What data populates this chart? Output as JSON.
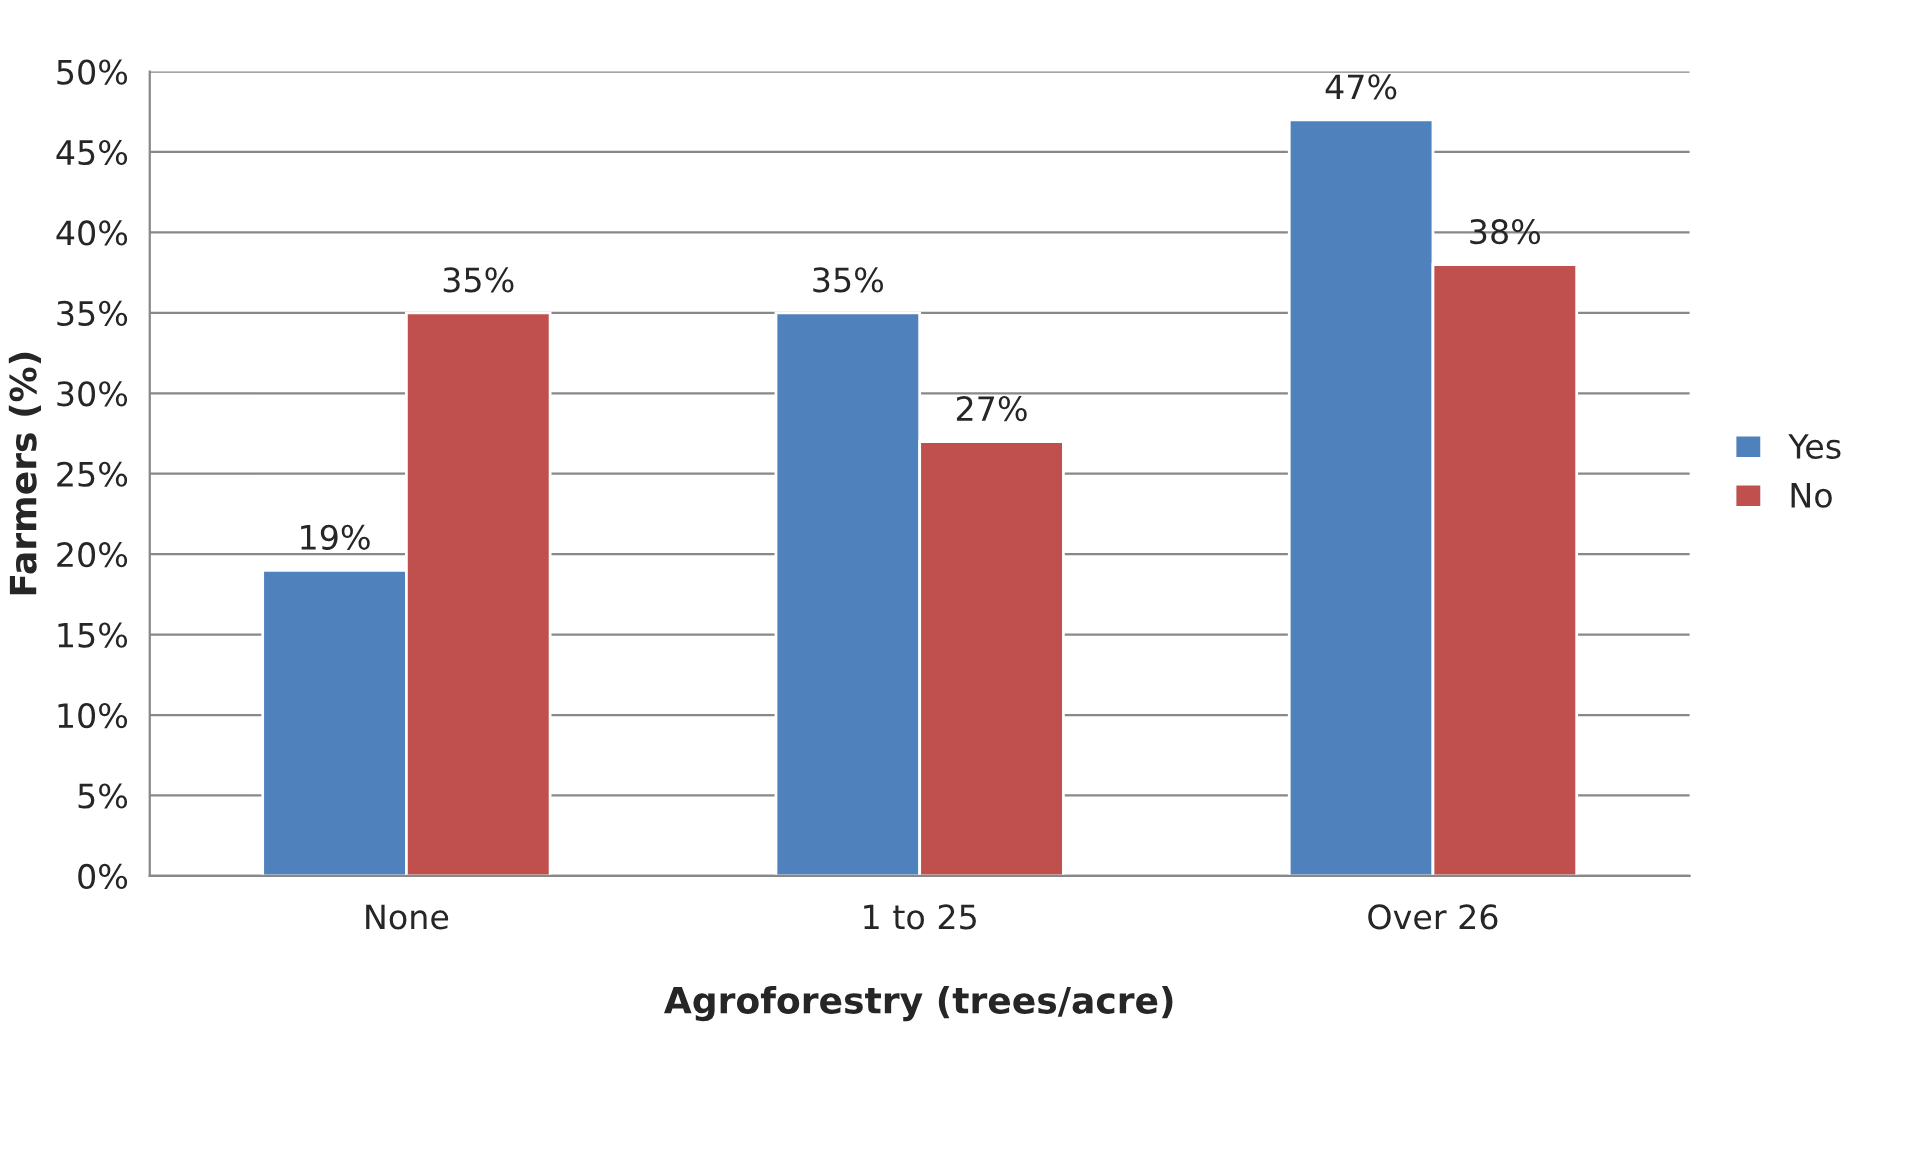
{
  "chart_data": {
    "type": "bar",
    "xlabel": "Agroforestry (trees/acre)",
    "ylabel": "Farmers (%)",
    "categories": [
      "None",
      "1 to 25",
      "Over 26"
    ],
    "series": [
      {
        "name": "Yes",
        "color": "#4f81bd",
        "values": [
          19,
          35,
          47
        ],
        "value_labels": [
          "19%",
          "35%",
          "47%"
        ]
      },
      {
        "name": "No",
        "color": "#c0504d",
        "values": [
          35,
          27,
          38
        ],
        "value_labels": [
          "35%",
          "27%",
          "38%"
        ]
      }
    ],
    "ylim": [
      0,
      50
    ],
    "yticks": [
      {
        "value": 0,
        "label": "0%"
      },
      {
        "value": 5,
        "label": "5%"
      },
      {
        "value": 10,
        "label": "10%"
      },
      {
        "value": 15,
        "label": "15%"
      },
      {
        "value": 20,
        "label": "20%"
      },
      {
        "value": 25,
        "label": "25%"
      },
      {
        "value": 30,
        "label": "30%"
      },
      {
        "value": 35,
        "label": "35%"
      },
      {
        "value": 40,
        "label": "40%"
      },
      {
        "value": 45,
        "label": "45%"
      },
      {
        "value": 50,
        "label": "50%"
      }
    ],
    "grid": "y",
    "legend": "right"
  }
}
